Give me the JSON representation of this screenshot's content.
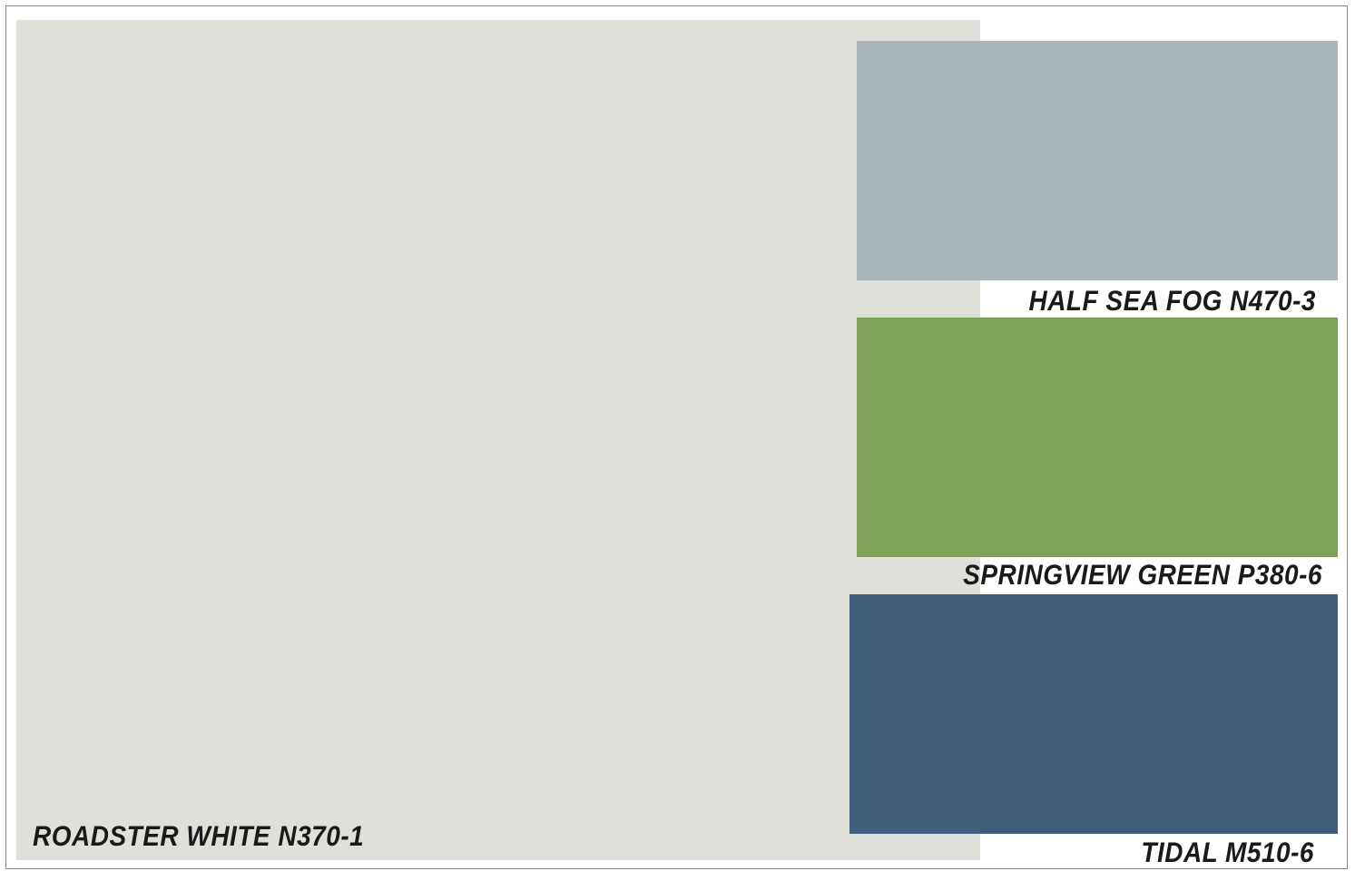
{
  "palette": {
    "main": {
      "name": "ROADSTER WHITE N370-1",
      "color": "#e0e0da"
    },
    "swatches": [
      {
        "name": "HALF SEA FOG N470-3",
        "color": "#a9b4ba"
      },
      {
        "name": "SPRINGVIEW GREEN P380-6",
        "color": "#7fa15a"
      },
      {
        "name": "TIDAL M510-6",
        "color": "#405e7c"
      }
    ]
  }
}
